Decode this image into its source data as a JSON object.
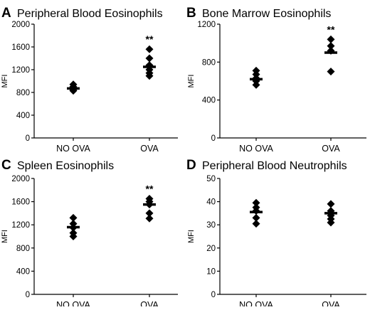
{
  "chart_data": [
    {
      "type": "scatter",
      "letter": "A",
      "title": "Peripheral Blood Eosinophils",
      "ylabel": "MFI",
      "xlabel": "",
      "categories": [
        "NO OVA",
        "OVA"
      ],
      "ylim": [
        0,
        2000
      ],
      "yticks": [
        "0",
        "400",
        "800",
        "1200",
        "1600",
        "2000"
      ],
      "tick_values": [
        0,
        400,
        800,
        1200,
        1600,
        2000
      ],
      "series": [
        {
          "values": [
            940,
            900,
            870,
            850,
            830
          ]
        },
        {
          "values": [
            1560,
            1400,
            1280,
            1200,
            1140,
            1090
          ]
        }
      ],
      "means": [
        870,
        1250
      ],
      "significance": [
        "",
        "**"
      ]
    },
    {
      "type": "scatter",
      "letter": "B",
      "title": "Bone Marrow Eosinophils",
      "ylabel": "MFI",
      "xlabel": "",
      "categories": [
        "NO OVA",
        "OVA"
      ],
      "ylim": [
        0,
        1200
      ],
      "yticks": [
        "0",
        "400",
        "800",
        "1200"
      ],
      "tick_values": [
        0,
        400,
        800,
        1200
      ],
      "series": [
        {
          "values": [
            710,
            670,
            630,
            600,
            560
          ]
        },
        {
          "values": [
            1040,
            970,
            920,
            700
          ]
        }
      ],
      "means": [
        620,
        900
      ],
      "significance": [
        "",
        "**"
      ]
    },
    {
      "type": "scatter",
      "letter": "C",
      "title": "Spleen Eosinophils",
      "ylabel": "MFI",
      "xlabel": "",
      "categories": [
        "NO OVA",
        "OVA"
      ],
      "ylim": [
        0,
        2000
      ],
      "yticks": [
        "0",
        "400",
        "800",
        "1200",
        "1600",
        "2000"
      ],
      "tick_values": [
        0,
        400,
        800,
        1200,
        1600,
        2000
      ],
      "series": [
        {
          "values": [
            1320,
            1220,
            1150,
            1060,
            1000
          ]
        },
        {
          "values": [
            1650,
            1600,
            1550,
            1400,
            1310
          ]
        }
      ],
      "means": [
        1160,
        1550
      ],
      "significance": [
        "",
        "**"
      ]
    },
    {
      "type": "scatter",
      "letter": "D",
      "title": "Peripheral Blood Neutrophils",
      "ylabel": "MFI",
      "xlabel": "",
      "categories": [
        "NO OVA",
        "OVA"
      ],
      "ylim": [
        0,
        50
      ],
      "yticks": [
        "0",
        "10",
        "20",
        "30",
        "40",
        "50"
      ],
      "tick_values": [
        0,
        10,
        20,
        30,
        40,
        50
      ],
      "series": [
        {
          "values": [
            39.5,
            37.5,
            36,
            33,
            30.5
          ]
        },
        {
          "values": [
            39,
            36,
            34,
            32.5,
            31
          ]
        }
      ],
      "means": [
        35.5,
        35
      ],
      "significance": [
        "",
        ""
      ]
    }
  ]
}
